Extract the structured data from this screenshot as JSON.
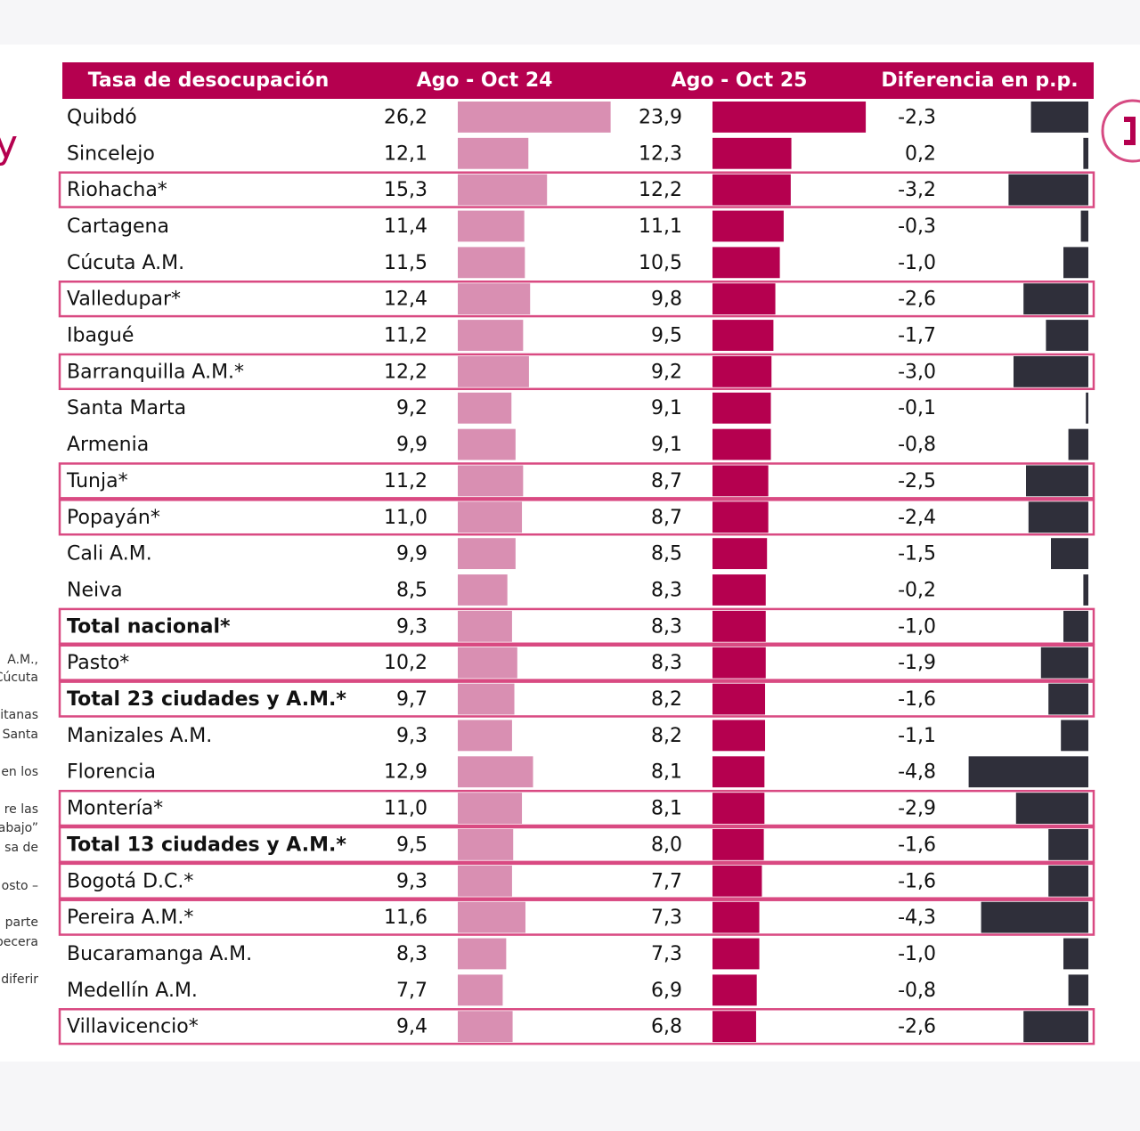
{
  "header": {
    "columns": [
      "Tasa de desocupación",
      "Ago - Oct 24",
      "Ago - Oct 25",
      "Diferencia en p.p."
    ]
  },
  "rows": [
    {
      "name": "Quibdó",
      "values": [
        26.2,
        23.9,
        -2.3
      ],
      "value_labels": [
        "26,2",
        "23,9",
        "-2,3"
      ],
      "bold": false,
      "highlighted": false
    },
    {
      "name": "Sincelejo",
      "values": [
        12.1,
        12.3,
        0.2
      ],
      "value_labels": [
        "12,1",
        "12,3",
        "0,2"
      ],
      "bold": false,
      "highlighted": false
    },
    {
      "name": "Riohacha*",
      "values": [
        15.3,
        12.2,
        -3.2
      ],
      "value_labels": [
        "15,3",
        "12,2",
        "-3,2"
      ],
      "bold": false,
      "highlighted": true
    },
    {
      "name": "Cartagena",
      "values": [
        11.4,
        11.1,
        -0.3
      ],
      "value_labels": [
        "11,4",
        "11,1",
        "-0,3"
      ],
      "bold": false,
      "highlighted": false
    },
    {
      "name": "Cúcuta A.M.",
      "values": [
        11.5,
        10.5,
        -1.0
      ],
      "value_labels": [
        "11,5",
        "10,5",
        "-1,0"
      ],
      "bold": false,
      "highlighted": false
    },
    {
      "name": "Valledupar*",
      "values": [
        12.4,
        9.8,
        -2.6
      ],
      "value_labels": [
        "12,4",
        "9,8",
        "-2,6"
      ],
      "bold": false,
      "highlighted": true
    },
    {
      "name": "Ibagué",
      "values": [
        11.2,
        9.5,
        -1.7
      ],
      "value_labels": [
        "11,2",
        "9,5",
        "-1,7"
      ],
      "bold": false,
      "highlighted": false
    },
    {
      "name": "Barranquilla A.M.*",
      "values": [
        12.2,
        9.2,
        -3.0
      ],
      "value_labels": [
        "12,2",
        "9,2",
        "-3,0"
      ],
      "bold": false,
      "highlighted": true
    },
    {
      "name": "Santa Marta",
      "values": [
        9.2,
        9.1,
        -0.1
      ],
      "value_labels": [
        "9,2",
        "9,1",
        "-0,1"
      ],
      "bold": false,
      "highlighted": false
    },
    {
      "name": "Armenia",
      "values": [
        9.9,
        9.1,
        -0.8
      ],
      "value_labels": [
        "9,9",
        "9,1",
        "-0,8"
      ],
      "bold": false,
      "highlighted": false
    },
    {
      "name": "Tunja*",
      "values": [
        11.2,
        8.7,
        -2.5
      ],
      "value_labels": [
        "11,2",
        "8,7",
        "-2,5"
      ],
      "bold": false,
      "highlighted": true
    },
    {
      "name": "Popayán*",
      "values": [
        11.0,
        8.7,
        -2.4
      ],
      "value_labels": [
        "11,0",
        "8,7",
        "-2,4"
      ],
      "bold": false,
      "highlighted": true
    },
    {
      "name": "Cali A.M.",
      "values": [
        9.9,
        8.5,
        -1.5
      ],
      "value_labels": [
        "9,9",
        "8,5",
        "-1,5"
      ],
      "bold": false,
      "highlighted": false
    },
    {
      "name": "Neiva",
      "values": [
        8.5,
        8.3,
        -0.2
      ],
      "value_labels": [
        "8,5",
        "8,3",
        "-0,2"
      ],
      "bold": false,
      "highlighted": false
    },
    {
      "name": "Total nacional*",
      "values": [
        9.3,
        8.3,
        -1.0
      ],
      "value_labels": [
        "9,3",
        "8,3",
        "-1,0"
      ],
      "bold": true,
      "highlighted": true
    },
    {
      "name": "Pasto*",
      "values": [
        10.2,
        8.3,
        -1.9
      ],
      "value_labels": [
        "10,2",
        "8,3",
        "-1,9"
      ],
      "bold": false,
      "highlighted": true
    },
    {
      "name": "Total 23 ciudades y A.M.*",
      "values": [
        9.7,
        8.2,
        -1.6
      ],
      "value_labels": [
        "9,7",
        "8,2",
        "-1,6"
      ],
      "bold": true,
      "highlighted": true
    },
    {
      "name": "Manizales A.M.",
      "values": [
        9.3,
        8.2,
        -1.1
      ],
      "value_labels": [
        "9,3",
        "8,2",
        "-1,1"
      ],
      "bold": false,
      "highlighted": false
    },
    {
      "name": "Florencia",
      "values": [
        12.9,
        8.1,
        -4.8
      ],
      "value_labels": [
        "12,9",
        "8,1",
        "-4,8"
      ],
      "bold": false,
      "highlighted": false
    },
    {
      "name": "Montería*",
      "values": [
        11.0,
        8.1,
        -2.9
      ],
      "value_labels": [
        "11,0",
        "8,1",
        "-2,9"
      ],
      "bold": false,
      "highlighted": true
    },
    {
      "name": "Total 13 ciudades y A.M.*",
      "values": [
        9.5,
        8.0,
        -1.6
      ],
      "value_labels": [
        "9,5",
        "8,0",
        "-1,6"
      ],
      "bold": true,
      "highlighted": true
    },
    {
      "name": "Bogotá D.C.*",
      "values": [
        9.3,
        7.7,
        -1.6
      ],
      "value_labels": [
        "9,3",
        "7,7",
        "-1,6"
      ],
      "bold": false,
      "highlighted": true
    },
    {
      "name": "Pereira A.M.*",
      "values": [
        11.6,
        7.3,
        -4.3
      ],
      "value_labels": [
        "11,6",
        "7,3",
        "-4,3"
      ],
      "bold": false,
      "highlighted": true
    },
    {
      "name": "Bucaramanga A.M.",
      "values": [
        8.3,
        7.3,
        -1.0
      ],
      "value_labels": [
        "8,3",
        "7,3",
        "-1,0"
      ],
      "bold": false,
      "highlighted": false
    },
    {
      "name": "Medellín A.M.",
      "values": [
        7.7,
        6.9,
        -0.8
      ],
      "value_labels": [
        "7,7",
        "6,9",
        "-0,8"
      ],
      "bold": false,
      "highlighted": false
    },
    {
      "name": "Villavicencio*",
      "values": [
        9.4,
        6.8,
        -2.6
      ],
      "value_labels": [
        "9,4",
        "6,8",
        "-2,6"
      ],
      "bold": false,
      "highlighted": true
    }
  ],
  "side_notes": [
    "A.M.,",
    "Cúcuta",
    "itanas",
    "Santa",
    "en los",
    "re las",
    "abajo”",
    "sa de",
    "osto –",
    "parte",
    "becera",
    "diferir"
  ],
  "side_letter": "y"
}
